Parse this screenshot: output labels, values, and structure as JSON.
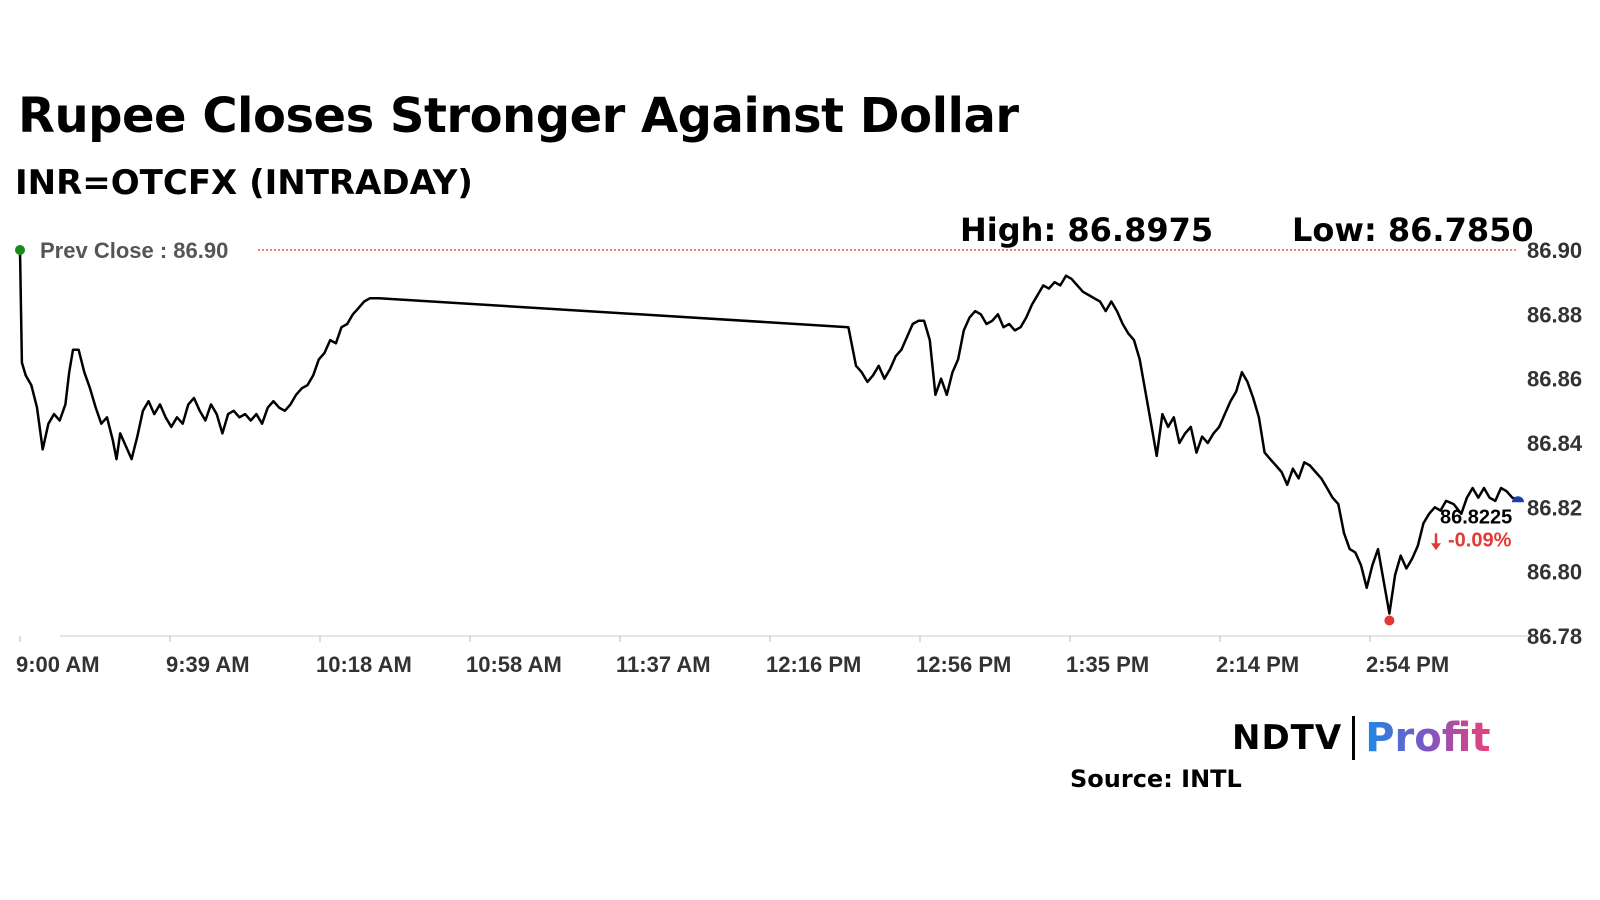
{
  "header": {
    "title": "Rupee Closes Stronger Against Dollar",
    "subtitle": "INR=OTCFX (INTRADAY)",
    "high_label": "High: 86.8975",
    "low_label": "Low: 86.7850"
  },
  "chart_data": {
    "type": "line",
    "prev_close_label": "Prev Close : 86.90",
    "prev_close": 86.9,
    "last_value_label": "86.8225",
    "change_label": "-0.09%",
    "change_icon": "down-arrow-icon",
    "ylim": [
      86.78,
      86.9
    ],
    "y_ticks": [
      "86.90",
      "86.88",
      "86.86",
      "86.84",
      "86.82",
      "86.80",
      "86.78"
    ],
    "x_ticks": [
      "9:00 AM",
      "9:39 AM",
      "10:18 AM",
      "10:58 AM",
      "11:37 AM",
      "12:16 PM",
      "12:56 PM",
      "1:35 PM",
      "2:14 PM",
      "2:54 PM"
    ],
    "xlim_minutes": [
      0,
      396
    ],
    "grid": false,
    "colors": {
      "line": "#000000",
      "prev_close": "#e53935",
      "start_marker": "#1a8a1a",
      "low_marker": "#e53935",
      "end_marker": "#1a3fb5",
      "change": "#e53935"
    },
    "series": [
      {
        "values_note_removed": true,
        "points": [
          [
            0,
            86.9
          ],
          [
            0.5,
            86.865
          ],
          [
            1.5,
            86.861
          ],
          [
            3,
            86.858
          ],
          [
            4.5,
            86.851
          ],
          [
            6,
            86.838
          ],
          [
            7.5,
            86.846
          ],
          [
            9,
            86.849
          ],
          [
            10.5,
            86.847
          ],
          [
            12,
            86.852
          ],
          [
            13,
            86.862
          ],
          [
            14,
            86.869
          ],
          [
            15.5,
            86.869
          ],
          [
            17,
            86.862
          ],
          [
            18.5,
            86.857
          ],
          [
            20,
            86.851
          ],
          [
            21.5,
            86.846
          ],
          [
            23,
            86.848
          ],
          [
            24.5,
            86.841
          ],
          [
            25.5,
            86.835
          ],
          [
            26.5,
            86.843
          ],
          [
            28,
            86.839
          ],
          [
            29.5,
            86.835
          ],
          [
            31,
            86.842
          ],
          [
            32.5,
            86.85
          ],
          [
            34,
            86.853
          ],
          [
            35.5,
            86.849
          ],
          [
            37,
            86.852
          ],
          [
            38.5,
            86.848
          ],
          [
            40,
            86.845
          ],
          [
            41.5,
            86.848
          ],
          [
            43,
            86.846
          ],
          [
            44.5,
            86.852
          ],
          [
            46,
            86.854
          ],
          [
            47.5,
            86.85
          ],
          [
            49,
            86.847
          ],
          [
            50.5,
            86.852
          ],
          [
            52,
            86.849
          ],
          [
            53.5,
            86.843
          ],
          [
            55,
            86.849
          ],
          [
            56.5,
            86.85
          ],
          [
            58,
            86.848
          ],
          [
            59.5,
            86.849
          ],
          [
            61,
            86.847
          ],
          [
            62.5,
            86.849
          ],
          [
            64,
            86.846
          ],
          [
            65.5,
            86.851
          ],
          [
            67,
            86.853
          ],
          [
            68.5,
            86.851
          ],
          [
            70,
            86.85
          ],
          [
            71.5,
            86.852
          ],
          [
            73,
            86.855
          ],
          [
            74.5,
            86.857
          ],
          [
            76,
            86.858
          ],
          [
            77.5,
            86.861
          ],
          [
            79,
            86.866
          ],
          [
            80.5,
            86.868
          ],
          [
            82,
            86.872
          ],
          [
            83.5,
            86.871
          ],
          [
            85,
            86.876
          ],
          [
            86.5,
            86.877
          ],
          [
            88,
            86.88
          ],
          [
            89.5,
            86.882
          ],
          [
            91,
            86.884
          ],
          [
            92.5,
            86.885
          ],
          [
            95,
            86.885
          ],
          [
            219,
            86.876
          ],
          [
            221,
            86.864
          ],
          [
            222.5,
            86.862
          ],
          [
            224,
            86.859
          ],
          [
            225.5,
            86.861
          ],
          [
            227,
            86.864
          ],
          [
            228.5,
            86.86
          ],
          [
            230,
            86.863
          ],
          [
            231.5,
            86.867
          ],
          [
            233,
            86.869
          ],
          [
            234.5,
            86.873
          ],
          [
            236,
            86.877
          ],
          [
            237.5,
            86.878
          ],
          [
            239,
            86.878
          ],
          [
            240.5,
            86.872
          ],
          [
            242,
            86.855
          ],
          [
            243.5,
            86.86
          ],
          [
            245,
            86.855
          ],
          [
            246.5,
            86.862
          ],
          [
            248,
            86.866
          ],
          [
            249.5,
            86.875
          ],
          [
            251,
            86.879
          ],
          [
            252.5,
            86.881
          ],
          [
            254,
            86.88
          ],
          [
            255.5,
            86.877
          ],
          [
            257,
            86.878
          ],
          [
            258.5,
            86.88
          ],
          [
            260,
            86.876
          ],
          [
            261.5,
            86.877
          ],
          [
            263,
            86.875
          ],
          [
            264.5,
            86.876
          ],
          [
            266,
            86.879
          ],
          [
            267.5,
            86.883
          ],
          [
            269,
            86.886
          ],
          [
            270.5,
            86.889
          ],
          [
            272,
            86.888
          ],
          [
            273.5,
            86.89
          ],
          [
            275,
            86.889
          ],
          [
            276.5,
            86.892
          ],
          [
            278,
            86.891
          ],
          [
            279.5,
            86.889
          ],
          [
            281,
            86.887
          ],
          [
            282.5,
            86.886
          ],
          [
            284,
            86.885
          ],
          [
            285.5,
            86.884
          ],
          [
            287,
            86.881
          ],
          [
            288.5,
            86.884
          ],
          [
            290,
            86.881
          ],
          [
            291.5,
            86.877
          ],
          [
            293,
            86.874
          ],
          [
            294.5,
            86.872
          ],
          [
            296,
            86.866
          ],
          [
            297.5,
            86.856
          ],
          [
            299,
            86.846
          ],
          [
            300.5,
            86.836
          ],
          [
            302,
            86.849
          ],
          [
            303.5,
            86.845
          ],
          [
            305,
            86.848
          ],
          [
            306.5,
            86.84
          ],
          [
            308,
            86.843
          ],
          [
            309.5,
            86.845
          ],
          [
            311,
            86.837
          ],
          [
            312.5,
            86.842
          ],
          [
            314,
            86.84
          ],
          [
            315.5,
            86.843
          ],
          [
            317,
            86.845
          ],
          [
            318.5,
            86.849
          ],
          [
            320,
            86.853
          ],
          [
            321.5,
            86.856
          ],
          [
            323,
            86.862
          ],
          [
            324.5,
            86.859
          ],
          [
            326,
            86.854
          ],
          [
            327.5,
            86.848
          ],
          [
            329,
            86.837
          ],
          [
            330.5,
            86.835
          ],
          [
            332,
            86.833
          ],
          [
            333.5,
            86.831
          ],
          [
            335,
            86.827
          ],
          [
            336.5,
            86.832
          ],
          [
            338,
            86.829
          ],
          [
            339.5,
            86.834
          ],
          [
            341,
            86.833
          ],
          [
            342.5,
            86.831
          ],
          [
            344,
            86.829
          ],
          [
            345.5,
            86.826
          ],
          [
            347,
            86.823
          ],
          [
            348.5,
            86.821
          ],
          [
            350,
            86.812
          ],
          [
            351.5,
            86.807
          ],
          [
            353,
            86.806
          ],
          [
            354.5,
            86.802
          ],
          [
            356,
            86.795
          ],
          [
            357.5,
            86.802
          ],
          [
            359,
            86.807
          ],
          [
            360.5,
            86.797
          ],
          [
            362,
            86.787
          ],
          [
            363.5,
            86.799
          ],
          [
            365,
            86.805
          ],
          [
            366.5,
            86.801
          ],
          [
            368,
            86.804
          ],
          [
            369.5,
            86.808
          ],
          [
            371,
            86.815
          ],
          [
            372.5,
            86.818
          ],
          [
            374,
            86.82
          ],
          [
            375.5,
            86.819
          ],
          [
            377,
            86.822
          ],
          [
            379,
            86.821
          ],
          [
            381,
            86.818
          ],
          [
            382.5,
            86.823
          ],
          [
            384,
            86.826
          ],
          [
            385.5,
            86.823
          ],
          [
            387,
            86.826
          ],
          [
            388.5,
            86.823
          ],
          [
            390,
            86.822
          ],
          [
            391.5,
            86.826
          ],
          [
            393,
            86.825
          ],
          [
            394.5,
            86.823
          ],
          [
            396,
            86.8225
          ]
        ]
      }
    ]
  },
  "footer": {
    "logo_ndtv": "NDTV",
    "logo_profit": "Profit",
    "source": "Source: INTL"
  }
}
